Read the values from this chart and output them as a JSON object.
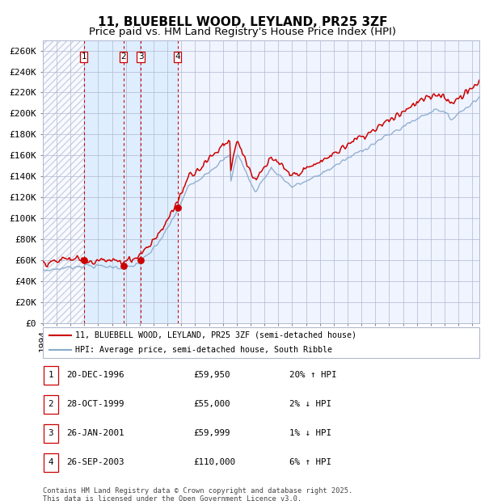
{
  "title": "11, BLUEBELL WOOD, LEYLAND, PR25 3ZF",
  "subtitle": "Price paid vs. HM Land Registry's House Price Index (HPI)",
  "ylim": [
    0,
    270000
  ],
  "yticks": [
    0,
    20000,
    40000,
    60000,
    80000,
    100000,
    120000,
    140000,
    160000,
    180000,
    200000,
    220000,
    240000,
    260000
  ],
  "ytick_labels": [
    "£0",
    "£20K",
    "£40K",
    "£60K",
    "£80K",
    "£100K",
    "£120K",
    "£140K",
    "£160K",
    "£180K",
    "£200K",
    "£220K",
    "£240K",
    "£260K"
  ],
  "sale_dates": [
    1996.97,
    1999.83,
    2001.07,
    2003.73
  ],
  "sale_prices": [
    59950,
    55000,
    59999,
    110000
  ],
  "sale_labels": [
    "1",
    "2",
    "3",
    "4"
  ],
  "transactions": [
    {
      "label": "1",
      "date": "20-DEC-1996",
      "price": "£59,950",
      "hpi": "20% ↑ HPI"
    },
    {
      "label": "2",
      "date": "28-OCT-1999",
      "price": "£55,000",
      "hpi": "2% ↓ HPI"
    },
    {
      "label": "3",
      "date": "26-JAN-2001",
      "price": "£59,999",
      "hpi": "1% ↓ HPI"
    },
    {
      "label": "4",
      "date": "26-SEP-2003",
      "price": "£110,000",
      "hpi": "6% ↑ HPI"
    }
  ],
  "legend1": "11, BLUEBELL WOOD, LEYLAND, PR25 3ZF (semi-detached house)",
  "legend2": "HPI: Average price, semi-detached house, South Ribble",
  "footer": "Contains HM Land Registry data © Crown copyright and database right 2025.\nThis data is licensed under the Open Government Licence v3.0.",
  "line_color_red": "#cc0000",
  "line_color_blue": "#88aacc",
  "bg_shaded": "#ddeeff",
  "grid_color": "#b0b8d0",
  "xmin": 1994.0,
  "xmax": 2025.5,
  "title_fontsize": 11,
  "subtitle_fontsize": 9.5,
  "tick_fontsize": 8
}
